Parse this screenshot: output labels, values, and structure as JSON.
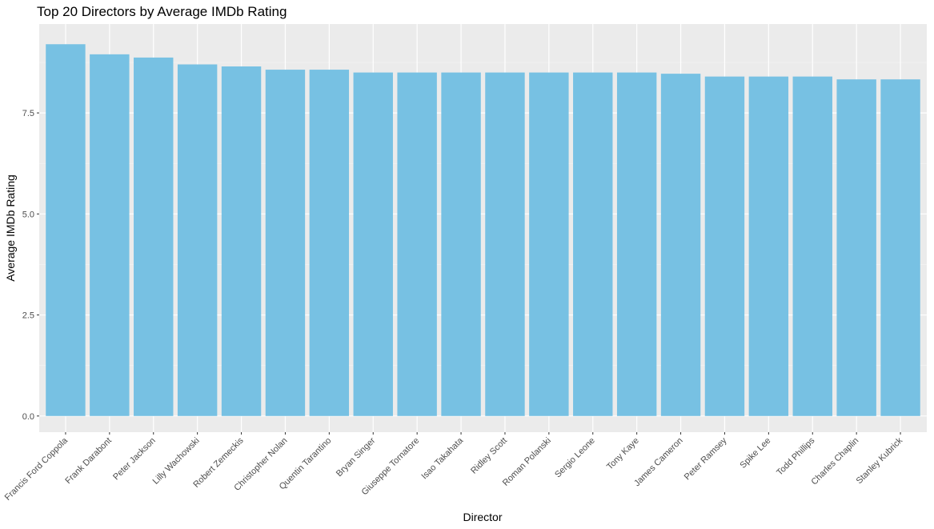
{
  "colors": {
    "panel_background": "#EBEBEB",
    "grid_major": "#FFFFFF",
    "grid_minor": "#F5F5F5",
    "bar_fill": "#77C1E3",
    "axis_text": "#4D4D4D",
    "tick_mark": "#333333"
  },
  "chart_data": {
    "type": "bar",
    "title": "Top 20 Directors by Average IMDb Rating",
    "xlabel": "Director",
    "ylabel": "Average IMDb Rating",
    "ylim": [
      -0.4,
      9.7
    ],
    "yticks": [
      0.0,
      2.5,
      5.0,
      7.5
    ],
    "ytick_labels": [
      "0.0",
      "2.5",
      "5.0",
      "7.5"
    ],
    "grid": true,
    "legend": "none",
    "categories": [
      "Francis Ford Coppola",
      "Frank Darabont",
      "Peter Jackson",
      "Lilly Wachowski",
      "Robert Zemeckis",
      "Christopher Nolan",
      "Quentin Tarantino",
      "Bryan Singer",
      "Giuseppe Tornatore",
      "Isao Takahata",
      "Ridley Scott",
      "Roman Polanski",
      "Sergio Leone",
      "Tony Kaye",
      "James Cameron",
      "Peter Ramsey",
      "Spike Lee",
      "Todd Phillips",
      "Charles Chaplin",
      "Stanley Kubrick"
    ],
    "values": [
      9.2,
      8.95,
      8.87,
      8.7,
      8.65,
      8.57,
      8.57,
      8.5,
      8.5,
      8.5,
      8.5,
      8.5,
      8.5,
      8.5,
      8.47,
      8.4,
      8.4,
      8.4,
      8.33,
      8.33
    ]
  }
}
